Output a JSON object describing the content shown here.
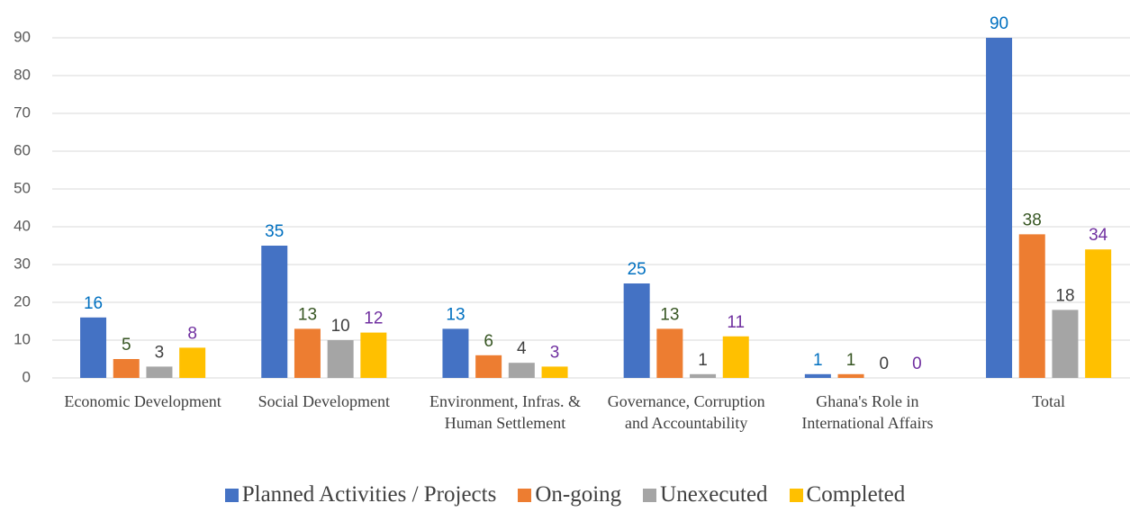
{
  "chart_data": {
    "type": "bar",
    "categories": [
      "Economic Development",
      "Social Development",
      "Environment, Infras. & Human Settlement",
      "Governance, Corruption and Accountability",
      "Ghana's Role in International Affairs",
      "Total"
    ],
    "series": [
      {
        "name": "Planned Activities / Projects",
        "color": "#4472c4",
        "label_color": "#0070c0",
        "values": [
          16,
          35,
          13,
          25,
          1,
          90
        ]
      },
      {
        "name": "On-going",
        "color": "#ed7d31",
        "label_color": "#375623",
        "values": [
          5,
          13,
          6,
          13,
          1,
          38
        ]
      },
      {
        "name": "Unexecuted",
        "color": "#a5a5a5",
        "label_color": "#404040",
        "values": [
          3,
          10,
          4,
          1,
          0,
          18
        ]
      },
      {
        "name": "Completed",
        "color": "#ffc000",
        "label_color": "#7030a0",
        "values": [
          8,
          12,
          3,
          11,
          0,
          34
        ]
      }
    ],
    "ylim": [
      0,
      90
    ],
    "yticks": [
      0,
      10,
      20,
      30,
      40,
      50,
      60,
      70,
      80,
      90
    ],
    "grid": true,
    "legend": "bottom"
  }
}
